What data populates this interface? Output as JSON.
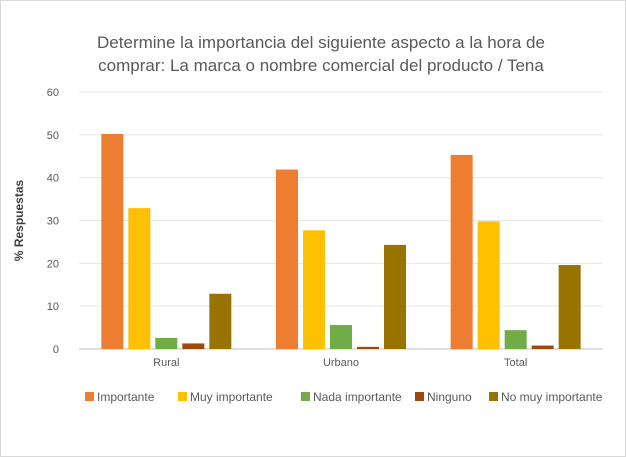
{
  "chart_data": {
    "type": "bar",
    "title_lines": [
      "Determine la importancia del siguiente aspecto a la hora de",
      "comprar: La marca o nombre comercial del producto / Tena"
    ],
    "xlabel": "",
    "ylabel": "% Respuestas",
    "ylim": [
      0,
      60
    ],
    "yticks": [
      0,
      10,
      20,
      30,
      40,
      50,
      60
    ],
    "grid": true,
    "legend_position": "bottom",
    "categories": [
      "Rural",
      "Urbano",
      "Total"
    ],
    "series": [
      {
        "name": "Importante",
        "color": "#ed7d31",
        "values": [
          50.2,
          41.9,
          45.3
        ]
      },
      {
        "name": "Muy importante",
        "color": "#ffc000",
        "values": [
          32.9,
          27.7,
          29.8
        ]
      },
      {
        "name": "Nada importante",
        "color": "#70ad47",
        "values": [
          2.6,
          5.6,
          4.4
        ]
      },
      {
        "name": "Ninguno",
        "color": "#9e480e",
        "values": [
          1.3,
          0.5,
          0.8
        ]
      },
      {
        "name": "No muy importante",
        "color": "#997300",
        "values": [
          12.9,
          24.3,
          19.6
        ]
      }
    ]
  }
}
